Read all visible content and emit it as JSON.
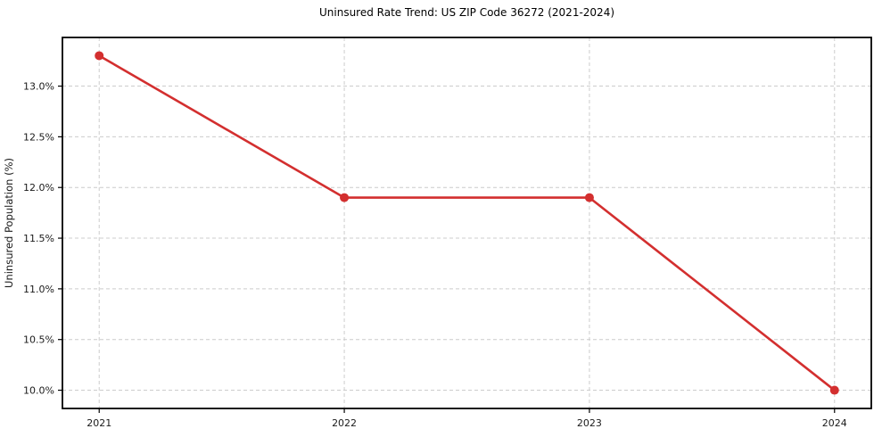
{
  "chart_data": {
    "type": "line",
    "title": "Uninsured Rate Trend: US ZIP Code 36272 (2021-2024)",
    "xlabel": "",
    "ylabel": "Uninsured Population (%)",
    "x": [
      2021,
      2022,
      2023,
      2024
    ],
    "values": [
      13.3,
      11.9,
      11.9,
      10.0
    ],
    "xticks": [
      "2021",
      "2022",
      "2023",
      "2024"
    ],
    "yticks": [
      "10.0%",
      "10.5%",
      "11.0%",
      "11.5%",
      "12.0%",
      "12.5%",
      "13.0%"
    ],
    "ytick_values": [
      10.0,
      10.5,
      11.0,
      11.5,
      12.0,
      12.5,
      13.0
    ],
    "xlim": [
      2020.85,
      2024.15
    ],
    "ylim": [
      9.82,
      13.48
    ],
    "grid": true,
    "grid_style": "dashed",
    "legend": "none",
    "colors": {
      "line": "#d32f2f",
      "marker": "#d32f2f",
      "grid": "#cccccc",
      "spine": "#000000",
      "text": "#1a1a1a",
      "background": "#ffffff"
    }
  }
}
